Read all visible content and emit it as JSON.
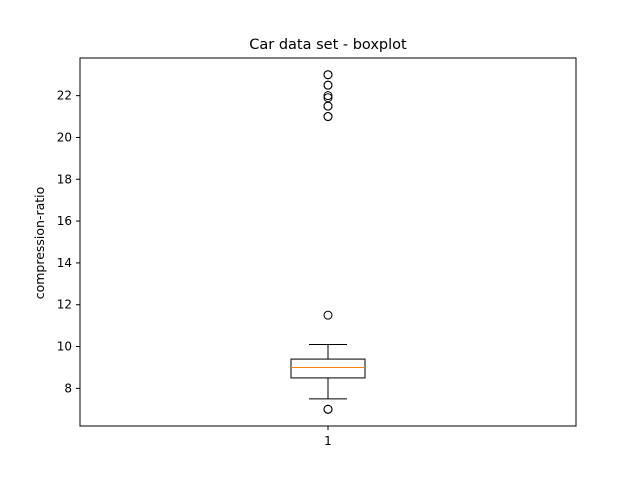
{
  "chart_data": {
    "type": "boxplot",
    "title": "Car data set - boxplot",
    "xlabel": "",
    "ylabel": "compression-ratio",
    "categories": [
      "1"
    ],
    "yticks": [
      8,
      10,
      12,
      14,
      16,
      18,
      20,
      22
    ],
    "ylim": [
      6.2,
      23.8
    ],
    "grid": false,
    "series": [
      {
        "whisker_low": 7.5,
        "q1": 8.5,
        "median": 9.0,
        "q3": 9.4,
        "whisker_high": 10.1,
        "outliers": [
          7.0,
          7.0,
          11.5,
          21.0,
          21.0,
          21.5,
          21.5,
          21.9,
          22.0,
          22.5,
          22.5,
          23.0,
          23.0
        ]
      }
    ],
    "colors": {
      "box": "#000000",
      "median": "#ff7f0e",
      "outlier": "#000000"
    }
  }
}
